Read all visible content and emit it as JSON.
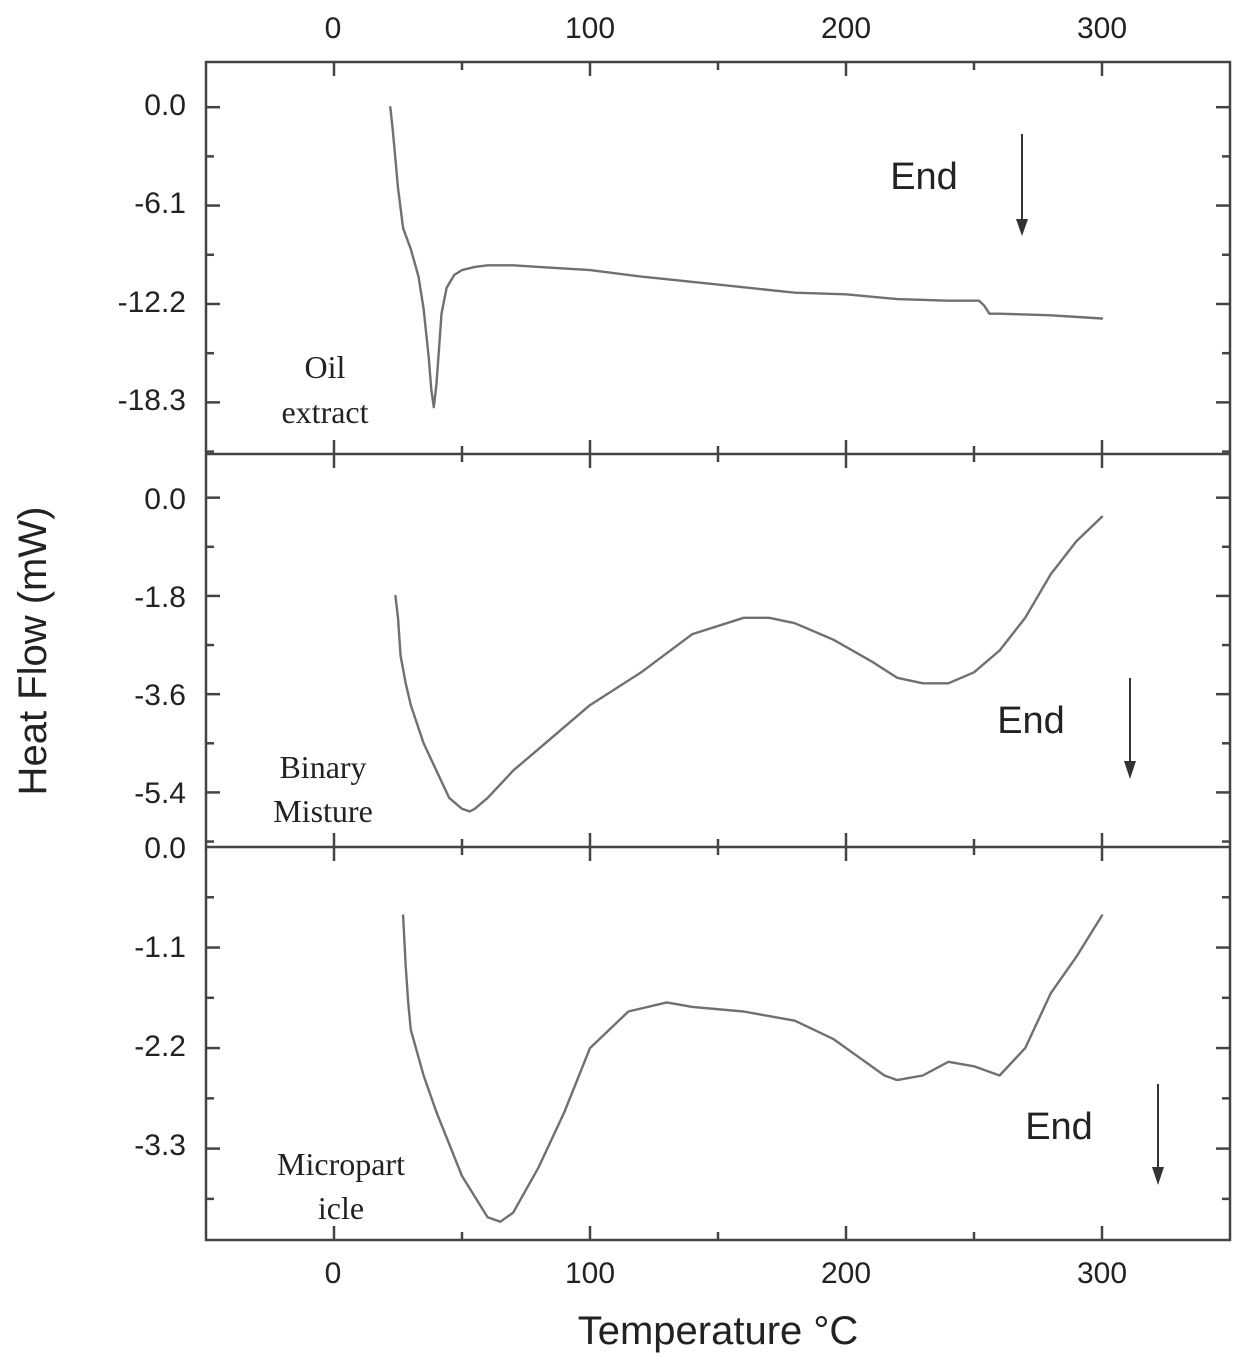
{
  "chart_data": {
    "type": "line",
    "xlabel": "Temperature °C",
    "ylabel": "Heat Flow (mW)",
    "xlim": [
      -50,
      350
    ],
    "x_ticks": [
      "0",
      "100",
      "200",
      "300"
    ],
    "panels": [
      {
        "id": "oil",
        "label_lines": [
          "Oil",
          "extract"
        ],
        "annotation": "End",
        "ylim": [
          -21.5,
          2.8
        ],
        "y_ticks": [
          "0.0",
          "-6.1",
          "-12.2",
          "-18.3"
        ],
        "series": {
          "x": [
            22,
            23,
            25,
            27,
            30,
            33,
            35,
            37,
            38,
            39,
            40,
            41,
            42,
            44,
            47,
            50,
            55,
            60,
            70,
            80,
            100,
            120,
            150,
            180,
            200,
            220,
            240,
            252,
            254,
            256,
            260,
            280,
            300
          ],
          "y": [
            0,
            -1.5,
            -5,
            -7.5,
            -8.8,
            -10.5,
            -12.5,
            -15.5,
            -17.5,
            -18.6,
            -17.2,
            -15.0,
            -12.8,
            -11.2,
            -10.4,
            -10.1,
            -9.9,
            -9.8,
            -9.8,
            -9.9,
            -10.1,
            -10.5,
            -11.0,
            -11.5,
            -11.6,
            -11.9,
            -12.0,
            -12.0,
            -12.3,
            -12.8,
            -12.8,
            -12.9,
            -13.1
          ]
        }
      },
      {
        "id": "binary",
        "label_lines": [
          "Binary",
          "Misture"
        ],
        "annotation": "End",
        "ylim": [
          -6.4,
          0.8
        ],
        "y_ticks": [
          "0.0",
          "-1.8",
          "-3.6",
          "-5.4"
        ],
        "series": {
          "x": [
            24,
            25,
            26,
            28,
            30,
            35,
            40,
            45,
            50,
            53,
            55,
            60,
            70,
            80,
            100,
            120,
            140,
            160,
            170,
            180,
            195,
            210,
            220,
            230,
            240,
            250,
            260,
            270,
            280,
            290,
            300
          ],
          "y": [
            -1.8,
            -2.2,
            -2.9,
            -3.4,
            -3.8,
            -4.5,
            -5.0,
            -5.5,
            -5.7,
            -5.75,
            -5.7,
            -5.5,
            -5.0,
            -4.6,
            -3.8,
            -3.2,
            -2.5,
            -2.2,
            -2.2,
            -2.3,
            -2.6,
            -3.0,
            -3.3,
            -3.4,
            -3.4,
            -3.2,
            -2.8,
            -2.2,
            -1.4,
            -0.8,
            -0.35
          ]
        }
      },
      {
        "id": "microparticle",
        "label_lines": [
          "Micropart",
          "icle"
        ],
        "annotation": "End",
        "ylim": [
          -4.3,
          0.0
        ],
        "y_ticks": [
          "0.0",
          "-1.1",
          "-2.2",
          "-3.3"
        ],
        "series": {
          "x": [
            27,
            28,
            29,
            30,
            35,
            40,
            50,
            60,
            65,
            70,
            80,
            90,
            100,
            115,
            130,
            140,
            160,
            180,
            195,
            205,
            215,
            220,
            230,
            240,
            250,
            260,
            270,
            280,
            290,
            300
          ],
          "y": [
            -0.75,
            -1.3,
            -1.7,
            -2.0,
            -2.5,
            -2.9,
            -3.6,
            -4.05,
            -4.1,
            -4.0,
            -3.5,
            -2.9,
            -2.2,
            -1.8,
            -1.7,
            -1.75,
            -1.8,
            -1.9,
            -2.1,
            -2.3,
            -2.5,
            -2.55,
            -2.5,
            -2.35,
            -2.4,
            -2.5,
            -2.2,
            -1.6,
            -1.2,
            -0.75
          ]
        }
      }
    ]
  }
}
